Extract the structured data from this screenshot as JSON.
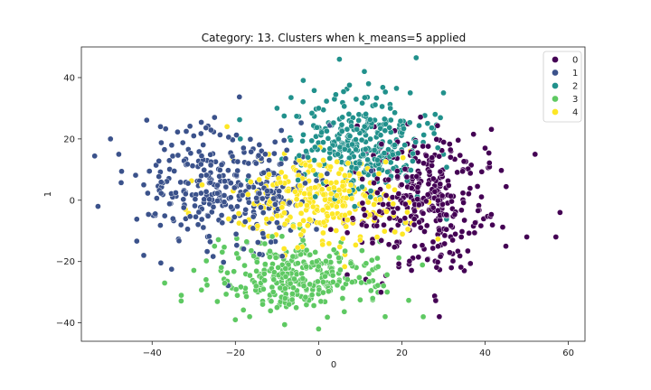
{
  "chart_data": {
    "type": "scatter",
    "title": "Category: 13. Clusters when k_means=5 applied",
    "xlabel": "0",
    "ylabel": "1",
    "xlim": [
      -57,
      64
    ],
    "ylim": [
      -46,
      50
    ],
    "xticks": [
      -40,
      -20,
      0,
      20,
      40,
      60
    ],
    "yticks": [
      -40,
      -20,
      0,
      20,
      40
    ],
    "grid": false,
    "legend_position": "top-right",
    "series": [
      {
        "name": "0",
        "color": "#440154",
        "center": [
          24,
          0
        ],
        "spread": [
          9,
          10
        ],
        "count": 340,
        "sample_points": [
          [
            58,
            -4
          ],
          [
            52,
            15
          ],
          [
            57,
            -12
          ],
          [
            45,
            -15
          ],
          [
            29,
            -38
          ],
          [
            40,
            17
          ],
          [
            50,
            -12
          ],
          [
            30,
            10
          ],
          [
            15,
            -30
          ],
          [
            35,
            -23
          ]
        ]
      },
      {
        "name": "1",
        "color": "#3b528b",
        "center": [
          -22,
          4
        ],
        "spread": [
          11,
          10
        ],
        "count": 340,
        "sample_points": [
          [
            -53,
            -2
          ],
          [
            -50,
            20
          ],
          [
            -48,
            15
          ],
          [
            -42,
            -18
          ],
          [
            -38,
            24
          ],
          [
            -30,
            21
          ],
          [
            -42,
            5
          ],
          [
            -25,
            27
          ],
          [
            -35,
            -6
          ],
          [
            -15,
            12
          ]
        ]
      },
      {
        "name": "2",
        "color": "#21918c",
        "center": [
          10,
          18
        ],
        "spread": [
          8,
          8
        ],
        "count": 320,
        "sample_points": [
          [
            5,
            46
          ],
          [
            11,
            42
          ],
          [
            12,
            38
          ],
          [
            22,
            35
          ],
          [
            30,
            35
          ],
          [
            28,
            28
          ],
          [
            0,
            30
          ],
          [
            -10,
            30
          ],
          [
            20,
            22
          ],
          [
            30,
            15
          ]
        ]
      },
      {
        "name": "3",
        "color": "#5ec962",
        "center": [
          -5,
          -25
        ],
        "spread": [
          10,
          6
        ],
        "count": 300,
        "sample_points": [
          [
            -37,
            -27
          ],
          [
            -33,
            -31
          ],
          [
            -20,
            -39
          ],
          [
            0,
            -42
          ],
          [
            13,
            -32
          ],
          [
            -10,
            -35
          ],
          [
            -25,
            -15
          ],
          [
            16,
            -38
          ],
          [
            5,
            -20
          ],
          [
            -15,
            -28
          ]
        ]
      },
      {
        "name": "4",
        "color": "#fde725",
        "center": [
          2,
          0
        ],
        "spread": [
          10,
          7
        ],
        "count": 300,
        "sample_points": [
          [
            -28,
            5
          ],
          [
            -22,
            24
          ],
          [
            -32,
            -3
          ],
          [
            22,
            16
          ],
          [
            18,
            -5
          ],
          [
            10,
            -13
          ],
          [
            -5,
            8
          ],
          [
            -12,
            15
          ],
          [
            5,
            2
          ],
          [
            -18,
            -8
          ]
        ]
      }
    ]
  }
}
